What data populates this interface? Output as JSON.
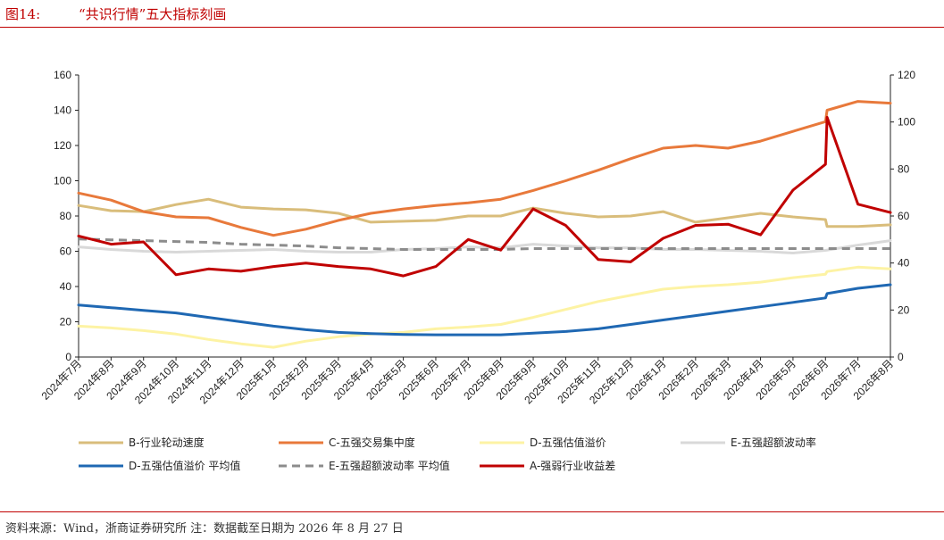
{
  "figure": {
    "number": "图14:",
    "title": "“共识行情”五大指标刻画"
  },
  "source_note": "资料来源：Wind，浙商证券研究所   注：数据截至日期为 2026 年 8 月 27 日",
  "chart_data": {
    "type": "line",
    "categories": [
      "2024年7月",
      "2024年8月",
      "2024年9月",
      "2024年10月",
      "2024年11月",
      "2024年12月",
      "2025年1月",
      "2025年2月",
      "2025年3月",
      "2025年4月",
      "2025年5月",
      "2025年6月",
      "2025年7月",
      "2025年8月",
      "2025年9月",
      "2025年10月",
      "2025年11月",
      "2025年12月",
      "2026年1月",
      "2026年2月",
      "2026年3月",
      "2026年4月",
      "2026年5月",
      "2026年6月",
      "2026年7月",
      "2026年8月"
    ],
    "left_axis": {
      "min": 0,
      "max": 160,
      "ticks": [
        "0",
        "20",
        "40",
        "60",
        "80",
        "100",
        "120",
        "140",
        "160"
      ]
    },
    "right_axis": {
      "min": 0,
      "max": 120,
      "ticks": [
        "0",
        "20",
        "40",
        "60",
        "80",
        "100",
        "120"
      ]
    },
    "grid": false,
    "legend_position": "bottom",
    "series": [
      {
        "name": "B-行业轮动速度",
        "axis": "left",
        "color": "#d9bd7b",
        "dash": false,
        "width": 3,
        "x": [
          0,
          1,
          2,
          3,
          4,
          5,
          6,
          7,
          8,
          9,
          10,
          11,
          12,
          13,
          14,
          15,
          16,
          17,
          18,
          19,
          20,
          21,
          22,
          23,
          23.05,
          24,
          25
        ],
        "values": [
          86,
          83,
          82.5,
          86.5,
          89.5,
          85,
          84,
          83.5,
          81.5,
          76.5,
          77,
          77.5,
          80,
          80,
          84.5,
          81.5,
          79.5,
          80,
          82.5,
          76.5,
          79,
          81.5,
          79.5,
          78,
          74,
          74,
          75
        ]
      },
      {
        "name": "C-五强交易集中度",
        "axis": "left",
        "color": "#e8793b",
        "dash": false,
        "width": 3,
        "x": [
          0,
          1,
          2,
          3,
          4,
          5,
          6,
          7,
          8,
          9,
          10,
          11,
          12,
          13,
          14,
          15,
          16,
          17,
          18,
          19,
          20,
          21,
          22,
          23,
          23.05,
          24,
          25
        ],
        "values": [
          93,
          89,
          82.5,
          79.5,
          79,
          73.5,
          69,
          72.5,
          77.5,
          81.5,
          84,
          86,
          87.5,
          89.5,
          94.5,
          100,
          106,
          112.5,
          118.5,
          120,
          118.5,
          122.5,
          128,
          133.5,
          140,
          145,
          144
        ]
      },
      {
        "name": "D-五强估值溢价",
        "axis": "left",
        "color": "#fdf3a4",
        "dash": false,
        "width": 3,
        "x": [
          0,
          1,
          2,
          3,
          4,
          5,
          6,
          7,
          8,
          9,
          10,
          11,
          12,
          13,
          14,
          15,
          16,
          17,
          18,
          19,
          20,
          21,
          22,
          23,
          23.05,
          24,
          25
        ],
        "values": [
          17.5,
          16.5,
          15,
          13,
          10,
          7.5,
          5.5,
          9,
          11.5,
          13,
          14,
          16,
          17,
          18.5,
          22.5,
          27,
          31.5,
          35,
          38.5,
          40,
          41,
          42.5,
          45,
          47,
          48.5,
          51,
          50
        ]
      },
      {
        "name": "E-五强超额波动率",
        "axis": "left",
        "color": "#d9d9d9",
        "dash": false,
        "width": 3,
        "x": [
          0,
          1,
          2,
          3,
          4,
          5,
          6,
          7,
          8,
          9,
          10,
          11,
          12,
          13,
          14,
          15,
          16,
          17,
          18,
          19,
          20,
          21,
          22,
          23,
          24,
          25
        ],
        "values": [
          62.5,
          61,
          60,
          59.5,
          60,
          60.5,
          61,
          60,
          59.5,
          59.5,
          61,
          61.5,
          62.5,
          62,
          64,
          63,
          62,
          62,
          61,
          61,
          60.5,
          60,
          59,
          60.5,
          63.5,
          66
        ]
      },
      {
        "name": "D-五强估值溢价 平均值",
        "axis": "left",
        "color": "#1f68b3",
        "dash": false,
        "width": 3,
        "x": [
          0,
          1,
          2,
          3,
          4,
          5,
          6,
          7,
          8,
          9,
          10,
          11,
          12,
          13,
          14,
          15,
          16,
          17,
          18,
          19,
          20,
          21,
          22,
          23,
          23.05,
          24,
          25
        ],
        "values": [
          29.5,
          28,
          26.5,
          25,
          22.5,
          20,
          17.5,
          15.5,
          14,
          13.3,
          12.8,
          12.6,
          12.6,
          12.6,
          13.5,
          14.5,
          16,
          18.5,
          21,
          23.5,
          26,
          28.5,
          31,
          33.5,
          36,
          39,
          41
        ]
      },
      {
        "name": "E-五强超额波动率 平均值",
        "axis": "left",
        "color": "#8c8c8c",
        "dash": true,
        "width": 3,
        "x": [
          0,
          1,
          2,
          3,
          4,
          5,
          6,
          7,
          8,
          9,
          10,
          11,
          12,
          13,
          14,
          15,
          16,
          17,
          18,
          19,
          20,
          21,
          22,
          23,
          24,
          25
        ],
        "values": [
          67,
          66.5,
          66,
          65.5,
          65,
          64,
          63.5,
          63,
          62,
          61.5,
          61,
          61,
          61,
          61,
          61.5,
          61.5,
          61.5,
          61.5,
          61.5,
          61.5,
          61.5,
          61.5,
          61.5,
          61.5,
          61.5,
          61.5
        ]
      },
      {
        "name": "A-强弱行业收益差",
        "axis": "right",
        "color": "#c00000",
        "dash": false,
        "width": 3,
        "x": [
          0,
          1,
          2,
          3,
          4,
          5,
          6,
          7,
          8,
          9,
          10,
          11,
          12,
          13,
          14,
          15,
          16,
          17,
          18,
          19,
          20,
          21,
          22,
          23,
          23.05,
          24,
          25
        ],
        "values": [
          51.5,
          48,
          49,
          35,
          37.5,
          36.5,
          38.5,
          40,
          38.5,
          37.5,
          34.5,
          38.5,
          50,
          45.5,
          63,
          56,
          41.5,
          40.5,
          50.5,
          56,
          56.5,
          52,
          71,
          82,
          102,
          65,
          61.5
        ]
      }
    ]
  }
}
